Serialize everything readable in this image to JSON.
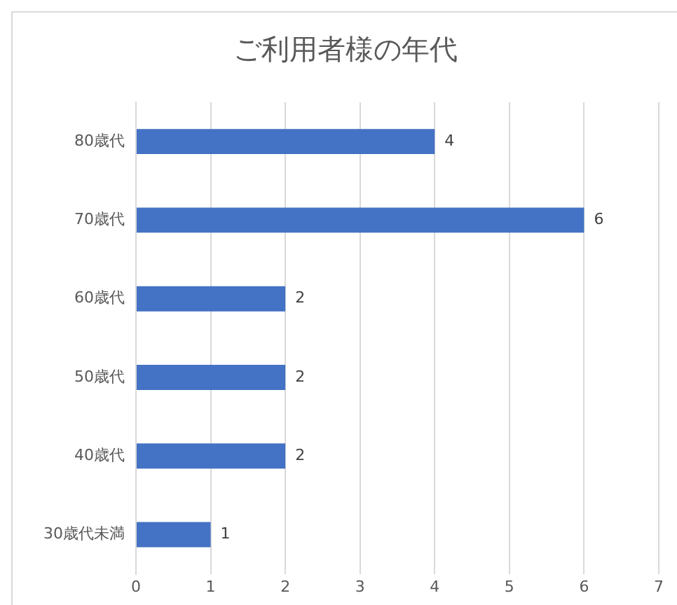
{
  "chart_data": {
    "type": "bar",
    "orientation": "horizontal",
    "title": "ご利用者様の年代",
    "categories": [
      "80歳代",
      "70歳代",
      "60歳代",
      "50歳代",
      "40歳代",
      "30歳代未満"
    ],
    "values": [
      4,
      6,
      2,
      2,
      2,
      1
    ],
    "color": "#4472c4",
    "xlim": [
      0,
      7
    ],
    "xticks": [
      0,
      1,
      2,
      3,
      4,
      5,
      6,
      7
    ],
    "grid": "x",
    "data_labels": true,
    "legend": false
  }
}
